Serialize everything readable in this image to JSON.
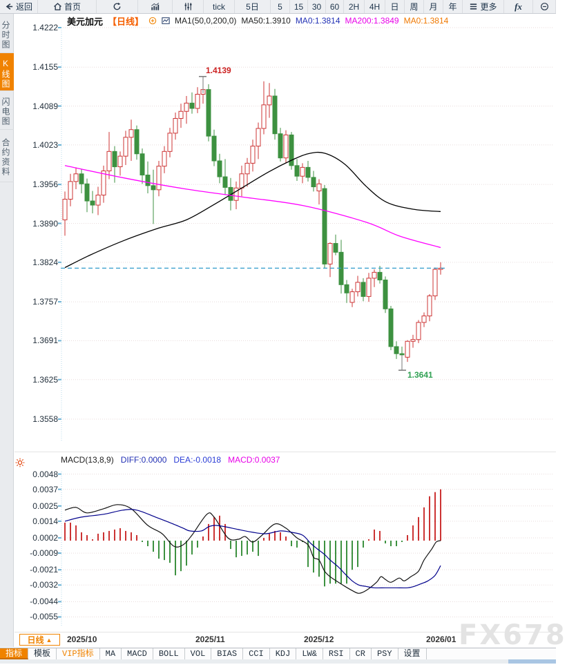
{
  "toolbar": {
    "items": [
      {
        "name": "back",
        "label": "返回",
        "icon": "back-arrow"
      },
      {
        "name": "home",
        "label": "首页",
        "icon": "home"
      },
      {
        "name": "refresh",
        "label": "",
        "icon": "refresh"
      },
      {
        "name": "chart-type",
        "label": "",
        "icon": "bar-chart"
      },
      {
        "name": "indicator-settings",
        "label": "",
        "icon": "sliders"
      },
      {
        "name": "tick",
        "label": "tick",
        "icon": ""
      },
      {
        "name": "5d",
        "label": "5日",
        "icon": ""
      },
      {
        "name": "m5",
        "label": "5",
        "icon": ""
      },
      {
        "name": "m15",
        "label": "15",
        "icon": ""
      },
      {
        "name": "m30",
        "label": "30",
        "icon": ""
      },
      {
        "name": "m60",
        "label": "60",
        "icon": ""
      },
      {
        "name": "h2",
        "label": "2H",
        "icon": ""
      },
      {
        "name": "h4",
        "label": "4H",
        "icon": ""
      },
      {
        "name": "day",
        "label": "日",
        "icon": ""
      },
      {
        "name": "week",
        "label": "周",
        "icon": ""
      },
      {
        "name": "month",
        "label": "月",
        "icon": ""
      },
      {
        "name": "year",
        "label": "年",
        "icon": ""
      },
      {
        "name": "more",
        "label": "更多",
        "icon": "menu"
      },
      {
        "name": "fx",
        "label": "fx",
        "icon": ""
      },
      {
        "name": "zoom-out",
        "label": "",
        "icon": "zoom-out"
      }
    ]
  },
  "sidebar": {
    "items": [
      {
        "name": "time-chart",
        "label": "分时图",
        "active": false
      },
      {
        "name": "kline-chart",
        "label": "K线图",
        "active": true
      },
      {
        "name": "lightning-chart",
        "label": "闪电图",
        "active": false
      },
      {
        "name": "contract-info",
        "label": "合约资料",
        "active": false
      }
    ]
  },
  "chart_header": {
    "symbol": "美元加元",
    "period": "【日线】",
    "ma_settings": "MA1(50,0,200,0)",
    "ma50": "MA50:1.3910",
    "ma0_primary": "MA0:1.3814",
    "ma200": "MA200:1.3849",
    "ma0_secondary": "MA0:1.3814"
  },
  "macd_header": {
    "title": "MACD(13,8,9)",
    "diff": "DIFF:0.0000",
    "dea": "DEA:-0.0018",
    "macd": "MACD:0.0037"
  },
  "bottom": {
    "period_button": "日线",
    "period_arrow": "▲",
    "tabs": [
      {
        "name": "indicators",
        "label": "指标",
        "state": "active"
      },
      {
        "name": "templates",
        "label": "模板",
        "state": ""
      },
      {
        "name": "vip-indicators",
        "label": "VIP指标",
        "state": "vip"
      },
      {
        "name": "ma",
        "label": "MA",
        "state": ""
      },
      {
        "name": "macd",
        "label": "MACD",
        "state": ""
      },
      {
        "name": "boll",
        "label": "BOLL",
        "state": ""
      },
      {
        "name": "vol",
        "label": "VOL",
        "state": ""
      },
      {
        "name": "bias",
        "label": "BIAS",
        "state": ""
      },
      {
        "name": "cci",
        "label": "CCI",
        "state": ""
      },
      {
        "name": "kdj",
        "label": "KDJ",
        "state": ""
      },
      {
        "name": "lw",
        "label": "LW&",
        "state": ""
      },
      {
        "name": "rsi",
        "label": "RSI",
        "state": ""
      },
      {
        "name": "cr",
        "label": "CR",
        "state": ""
      },
      {
        "name": "psy",
        "label": "PSY",
        "state": ""
      },
      {
        "name": "settings",
        "label": "设置",
        "state": ""
      }
    ]
  },
  "watermark": "FX678",
  "colors": {
    "accent_orange": "#f08300",
    "up_red": "#cc3333",
    "down_green": "#3d9140",
    "ma50_line": "#000000",
    "ma200_line": "#ff00ff",
    "diff_line": "#111111",
    "dea_line": "#00008b",
    "price_line": "#2f9bca",
    "grid": "#e8dada",
    "tick_cyan": "#6db3d6"
  },
  "chart_data": {
    "type": "candlestick_with_macd",
    "symbol": "美元加元",
    "timeframe": "日线",
    "y_axis_labels": [
      "1.4222",
      "1.4155",
      "1.4089",
      "1.4023",
      "1.3956",
      "1.3890",
      "1.3824",
      "1.3757",
      "1.3691",
      "1.3625",
      "1.3558"
    ],
    "macd_axis_labels": [
      "0.0048",
      "0.0037",
      "0.0025",
      "0.0014",
      "0.0002",
      "-0.0009",
      "-0.0021",
      "-0.0032",
      "-0.0044",
      "-0.0055"
    ],
    "x_labels": [
      "2025/10",
      "2025/11",
      "2025/12",
      "2026/01"
    ],
    "x_label_indices": [
      0.4,
      23.6,
      43.3,
      65.4
    ],
    "last_price": 1.3814,
    "high_annotation": {
      "index": 25,
      "price": 1.4139,
      "label": "1.4139"
    },
    "low_annotation": {
      "index": 61,
      "price": 1.3641,
      "label": "1.3641"
    },
    "candles": [
      [
        1.3896,
        1.3944,
        1.3869,
        1.3931
      ],
      [
        1.3931,
        1.3974,
        1.3919,
        1.3961
      ],
      [
        1.3961,
        1.3985,
        1.3948,
        1.3974
      ],
      [
        1.3974,
        1.3982,
        1.3941,
        1.3957
      ],
      [
        1.3957,
        1.3966,
        1.3909,
        1.3928
      ],
      [
        1.3928,
        1.3945,
        1.3907,
        1.3921
      ],
      [
        1.3921,
        1.3952,
        1.3904,
        1.3938
      ],
      [
        1.3938,
        1.3988,
        1.3925,
        1.3979
      ],
      [
        1.3979,
        1.4045,
        1.3965,
        1.4012
      ],
      [
        1.4012,
        1.4021,
        1.3959,
        1.3986
      ],
      [
        1.3986,
        1.4012,
        1.3971,
        1.4004
      ],
      [
        1.4004,
        1.4047,
        1.3989,
        1.4036
      ],
      [
        1.4036,
        1.4066,
        1.3996,
        1.4049
      ],
      [
        1.4049,
        1.4056,
        1.3998,
        1.4008
      ],
      [
        1.4008,
        1.4017,
        1.3957,
        1.3972
      ],
      [
        1.3972,
        1.3995,
        1.3941,
        1.3954
      ],
      [
        1.3954,
        1.3981,
        1.3889,
        1.3947
      ],
      [
        1.3947,
        1.3996,
        1.3936,
        1.3987
      ],
      [
        1.3987,
        1.4021,
        1.3975,
        1.4012
      ],
      [
        1.4012,
        1.4052,
        1.4002,
        1.4043
      ],
      [
        1.4043,
        1.4078,
        1.4032,
        1.4068
      ],
      [
        1.4068,
        1.4093,
        1.4052,
        1.408
      ],
      [
        1.408,
        1.4106,
        1.4059,
        1.4094
      ],
      [
        1.4094,
        1.4112,
        1.4076,
        1.4085
      ],
      [
        1.4085,
        1.4121,
        1.4077,
        1.4109
      ],
      [
        1.4109,
        1.4139,
        1.4093,
        1.4117
      ],
      [
        1.4117,
        1.4126,
        1.4029,
        1.4038
      ],
      [
        1.4038,
        1.4049,
        1.3987,
        1.3996
      ],
      [
        1.3996,
        1.4008,
        1.3958,
        1.3969
      ],
      [
        1.3969,
        1.3999,
        1.3938,
        1.3951
      ],
      [
        1.3951,
        1.3967,
        1.3912,
        1.3929
      ],
      [
        1.3929,
        1.3961,
        1.3914,
        1.395
      ],
      [
        1.395,
        1.3988,
        1.3936,
        1.3974
      ],
      [
        1.3974,
        1.4001,
        1.3952,
        1.3992
      ],
      [
        1.3992,
        1.4032,
        1.3978,
        1.4021
      ],
      [
        1.4021,
        1.4061,
        1.3999,
        1.4051
      ],
      [
        1.4051,
        1.4131,
        1.4041,
        1.4091
      ],
      [
        1.4091,
        1.4128,
        1.4069,
        1.4106
      ],
      [
        1.4106,
        1.4118,
        1.4032,
        1.4042
      ],
      [
        1.4042,
        1.4052,
        1.3995,
        1.4001
      ],
      [
        1.4001,
        1.4048,
        1.3992,
        1.404
      ],
      [
        1.404,
        1.4045,
        1.3981,
        1.3988
      ],
      [
        1.3988,
        1.3999,
        1.3962,
        1.397
      ],
      [
        1.397,
        1.3992,
        1.3958,
        1.3985
      ],
      [
        1.3985,
        1.3996,
        1.3961,
        1.3968
      ],
      [
        1.3968,
        1.3979,
        1.3944,
        1.3952
      ],
      [
        1.3945,
        1.3965,
        1.3922,
        1.3957
      ],
      [
        1.3949,
        1.3955,
        1.3814,
        1.3821
      ],
      [
        1.3821,
        1.3858,
        1.3799,
        1.3856
      ],
      [
        1.3856,
        1.3871,
        1.3836,
        1.3841
      ],
      [
        1.3841,
        1.3862,
        1.3771,
        1.3786
      ],
      [
        1.3786,
        1.3794,
        1.3755,
        1.3772
      ],
      [
        1.3756,
        1.3779,
        1.3748,
        1.3774
      ],
      [
        1.3774,
        1.3801,
        1.3766,
        1.379
      ],
      [
        1.379,
        1.3797,
        1.3758,
        1.3766
      ],
      [
        1.3766,
        1.3806,
        1.3757,
        1.3797
      ],
      [
        1.3797,
        1.3812,
        1.3782,
        1.3807
      ],
      [
        1.3807,
        1.3818,
        1.3788,
        1.3794
      ],
      [
        1.3794,
        1.38,
        1.3738,
        1.3745
      ],
      [
        1.3745,
        1.375,
        1.3675,
        1.3681
      ],
      [
        1.3681,
        1.369,
        1.366,
        1.3669
      ],
      [
        1.3669,
        1.3681,
        1.3641,
        1.3667
      ],
      [
        1.3663,
        1.3692,
        1.3655,
        1.369
      ],
      [
        1.369,
        1.3701,
        1.3679,
        1.3693
      ],
      [
        1.3693,
        1.3726,
        1.3687,
        1.3722
      ],
      [
        1.3722,
        1.3739,
        1.3714,
        1.3733
      ],
      [
        1.3733,
        1.377,
        1.3724,
        1.3767
      ],
      [
        1.3767,
        1.3815,
        1.376,
        1.3812
      ],
      [
        1.3812,
        1.3824,
        1.3803,
        1.3814
      ]
    ],
    "ma50_points": [
      [
        0,
        1.3815
      ],
      [
        4.5,
        1.3836
      ],
      [
        10.7,
        1.3861
      ],
      [
        17,
        1.3882
      ],
      [
        22,
        1.3896
      ],
      [
        27,
        1.3922
      ],
      [
        32,
        1.395
      ],
      [
        37,
        1.3978
      ],
      [
        41,
        1.3997
      ],
      [
        44,
        1.4008
      ],
      [
        47,
        1.4009
      ],
      [
        50.7,
        1.399
      ],
      [
        54.5,
        1.3953
      ],
      [
        58.2,
        1.3926
      ],
      [
        63,
        1.3914
      ],
      [
        68,
        1.391
      ]
    ],
    "ma200_points": [
      [
        0,
        1.3988
      ],
      [
        10.7,
        1.3967
      ],
      [
        21.4,
        1.3949
      ],
      [
        32,
        1.3935
      ],
      [
        43.2,
        1.392
      ],
      [
        54.5,
        1.3892
      ],
      [
        60.7,
        1.3868
      ],
      [
        68,
        1.3849
      ]
    ],
    "macd": {
      "hist": [
        0.0013,
        0.0013,
        0.0011,
        0.0006,
        0.0004,
        0.0001,
        0.0005,
        0.0006,
        0.0007,
        0.0008,
        0.0009,
        0.0007,
        0.0006,
        0.0004,
        -0.0001,
        -0.0004,
        -0.0008,
        -0.0013,
        -0.0014,
        -0.0016,
        -0.0025,
        -0.0022,
        -0.0018,
        -0.001,
        -0.0005,
        0.0003,
        0.0012,
        0.0017,
        0.0018,
        0.0012,
        -0.0006,
        -0.0012,
        -0.0011,
        -0.001,
        -0.0008,
        -0.0011,
        0.0002,
        0.0005,
        0.0007,
        0.0006,
        0.0003,
        -0.0004,
        -0.0005,
        -0.0001,
        -0.0019,
        -0.0023,
        -0.0026,
        -0.0033,
        -0.0031,
        -0.0031,
        -0.0031,
        -0.0031,
        -0.0021,
        -0.0019,
        -0.0005,
        0.0001,
        0.0008,
        0.0007,
        -0.0002,
        -0.0004,
        -0.0004,
        -0.0001,
        0.0004,
        0.0011,
        0.0017,
        0.0024,
        0.0032,
        0.0035,
        0.0037
      ],
      "diff_points": [
        [
          0,
          0.0022
        ],
        [
          2,
          0.0024
        ],
        [
          4,
          0.002
        ],
        [
          7,
          0.0023
        ],
        [
          9.5,
          0.0026
        ],
        [
          12,
          0.0023
        ],
        [
          15,
          0.0011
        ],
        [
          17.6,
          0.0005
        ],
        [
          19.7,
          -0.0004
        ],
        [
          21.4,
          -0.0003
        ],
        [
          23,
          0.0004
        ],
        [
          25.7,
          0.0019
        ],
        [
          27,
          0.0017
        ],
        [
          29.5,
          0.0002
        ],
        [
          31.4,
          0.0001
        ],
        [
          32.6,
          0.0003
        ],
        [
          34,
          -0.0001
        ],
        [
          35.7,
          0.0004
        ],
        [
          38,
          0.0012
        ],
        [
          40,
          0.0009
        ],
        [
          42,
          0.0002
        ],
        [
          44,
          -0.0003
        ],
        [
          45,
          -0.0012
        ],
        [
          46,
          -0.0014
        ],
        [
          47,
          -0.0022
        ],
        [
          48,
          -0.0026
        ],
        [
          49.5,
          -0.003
        ],
        [
          50.7,
          -0.0033
        ],
        [
          52,
          -0.0036
        ],
        [
          53.2,
          -0.0038
        ],
        [
          54.5,
          -0.0036
        ],
        [
          56.4,
          -0.003
        ],
        [
          57.2,
          -0.0026
        ],
        [
          58,
          -0.0028
        ],
        [
          59,
          -0.003
        ],
        [
          60.5,
          -0.0027
        ],
        [
          61.4,
          -0.0029
        ],
        [
          62.6,
          -0.0026
        ],
        [
          64,
          -0.0022
        ],
        [
          65,
          -0.0014
        ],
        [
          66.4,
          -0.0006
        ],
        [
          67.2,
          -0.0001
        ],
        [
          68,
          0.0
        ]
      ],
      "dea_points": [
        [
          0,
          0.0014
        ],
        [
          3,
          0.0017
        ],
        [
          7,
          0.0019
        ],
        [
          10.5,
          0.0022
        ],
        [
          13,
          0.0022
        ],
        [
          16.4,
          0.0017
        ],
        [
          19,
          0.0013
        ],
        [
          21.4,
          0.0009
        ],
        [
          22.6,
          0.0007
        ],
        [
          24.7,
          0.0007
        ],
        [
          26,
          0.001
        ],
        [
          27.2,
          0.0011
        ],
        [
          29,
          0.001
        ],
        [
          31.4,
          0.0008
        ],
        [
          34,
          0.0006
        ],
        [
          36.4,
          0.0005
        ],
        [
          39,
          0.0007
        ],
        [
          41,
          0.0006
        ],
        [
          43,
          0.0004
        ],
        [
          44.5,
          -0.0002
        ],
        [
          45.7,
          -0.0006
        ],
        [
          47,
          -0.001
        ],
        [
          48,
          -0.0014
        ],
        [
          49.5,
          -0.0019
        ],
        [
          50.7,
          -0.0024
        ],
        [
          52,
          -0.0029
        ],
        [
          53.2,
          -0.0032
        ],
        [
          54.5,
          -0.0033
        ],
        [
          56,
          -0.0034
        ],
        [
          58,
          -0.0034
        ],
        [
          60,
          -0.0034
        ],
        [
          62,
          -0.0034
        ],
        [
          63.2,
          -0.0033
        ],
        [
          64.5,
          -0.0031
        ],
        [
          65.7,
          -0.0029
        ],
        [
          67,
          -0.0025
        ],
        [
          68,
          -0.0018
        ]
      ]
    }
  }
}
